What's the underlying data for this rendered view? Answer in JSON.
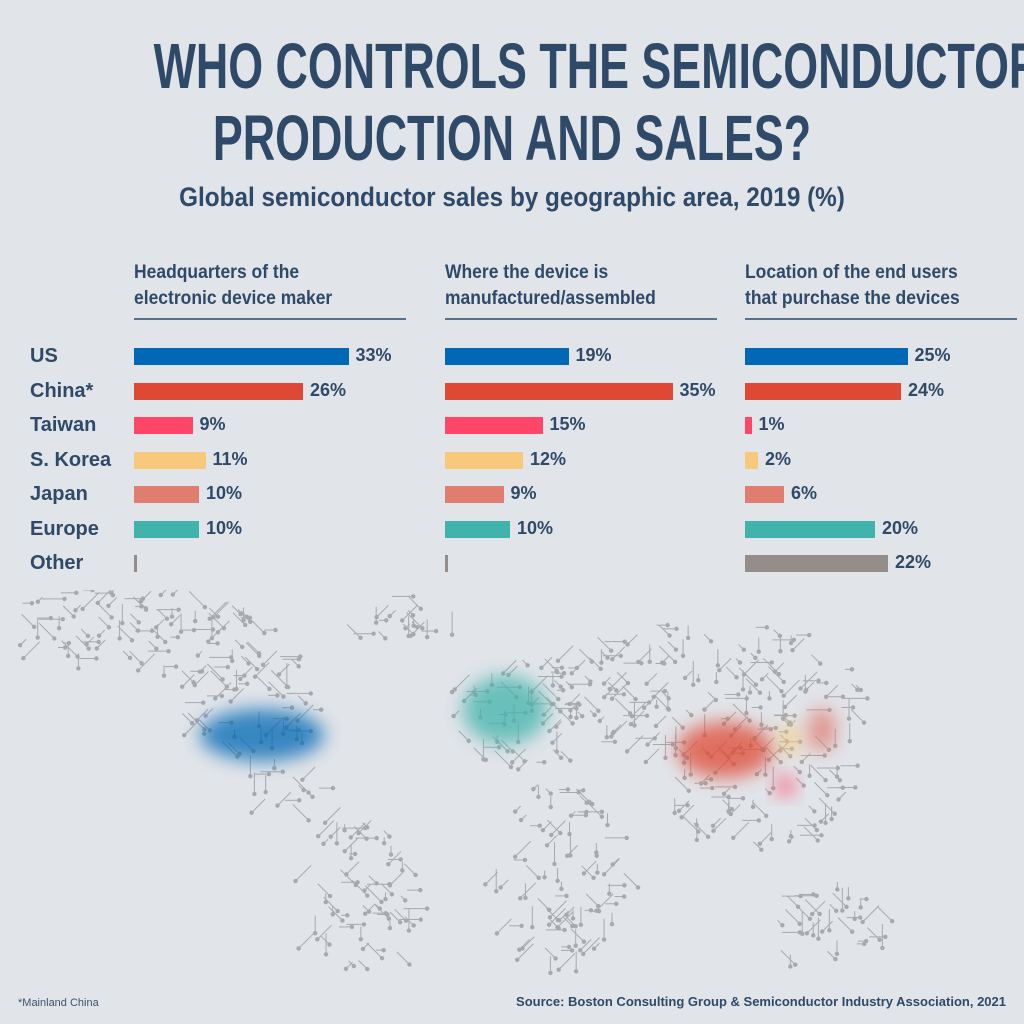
{
  "title_line1": "WHO CONTROLS THE SEMICONDUCTOR",
  "title_line2": "PRODUCTION AND SALES?",
  "chart_data": {
    "type": "bar",
    "title": "Global semiconductor sales by geographic area, 2019 (%)",
    "categories": [
      "US",
      "China*",
      "Taiwan",
      "S. Korea",
      "Japan",
      "Europe",
      "Other"
    ],
    "colors": [
      "#0068b4",
      "#e04836",
      "#ff4668",
      "#f8c97a",
      "#e07c70",
      "#42b3ac",
      "#948d89"
    ],
    "series": [
      {
        "name": "Headquarters of the electronic device maker",
        "values": [
          33,
          26,
          9,
          11,
          10,
          10,
          0.5
        ],
        "labels": [
          "33%",
          "26%",
          "9%",
          "11%",
          "10%",
          "10%",
          ""
        ]
      },
      {
        "name": "Where the device is manufactured/assembled",
        "values": [
          19,
          35,
          15,
          12,
          9,
          10,
          0.5
        ],
        "labels": [
          "19%",
          "35%",
          "15%",
          "12%",
          "9%",
          "10%",
          ""
        ]
      },
      {
        "name": "Location of the end users that purchase the devices",
        "values": [
          25,
          24,
          1,
          2,
          6,
          20,
          22
        ],
        "labels": [
          "25%",
          "24%",
          "1%",
          "2%",
          "6%",
          "20%",
          "22%"
        ]
      }
    ],
    "series_headers": [
      [
        "Headquarters of the",
        "electronic device maker"
      ],
      [
        "Where the device is",
        "manufactured/assembled"
      ],
      [
        "Location of the end users",
        "that purchase the devices"
      ]
    ],
    "xlim": [
      0,
      35
    ]
  },
  "footnote": "*Mainland China",
  "source": "Source: Boston Consulting Group & Semiconductor Industry Association, 2021"
}
